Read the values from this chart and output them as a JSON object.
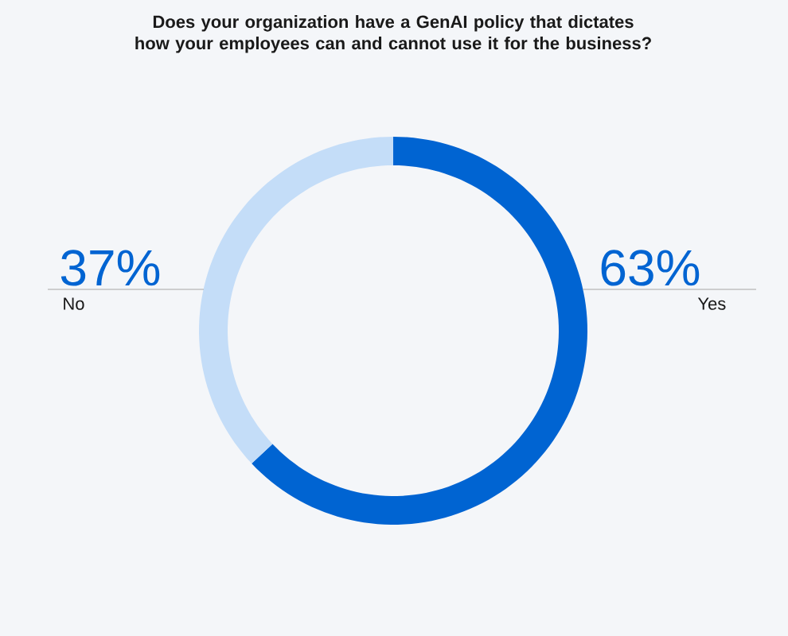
{
  "chart_data": {
    "type": "donut",
    "title": "Does your organization have a GenAI policy that dictates how your employees can and cannot use it for the business?",
    "categories": [
      "Yes",
      "No"
    ],
    "values": [
      63,
      37
    ],
    "colors": [
      "#0064d2",
      "#c4ddf8"
    ],
    "value_labels": [
      "63%",
      "37%"
    ]
  }
}
